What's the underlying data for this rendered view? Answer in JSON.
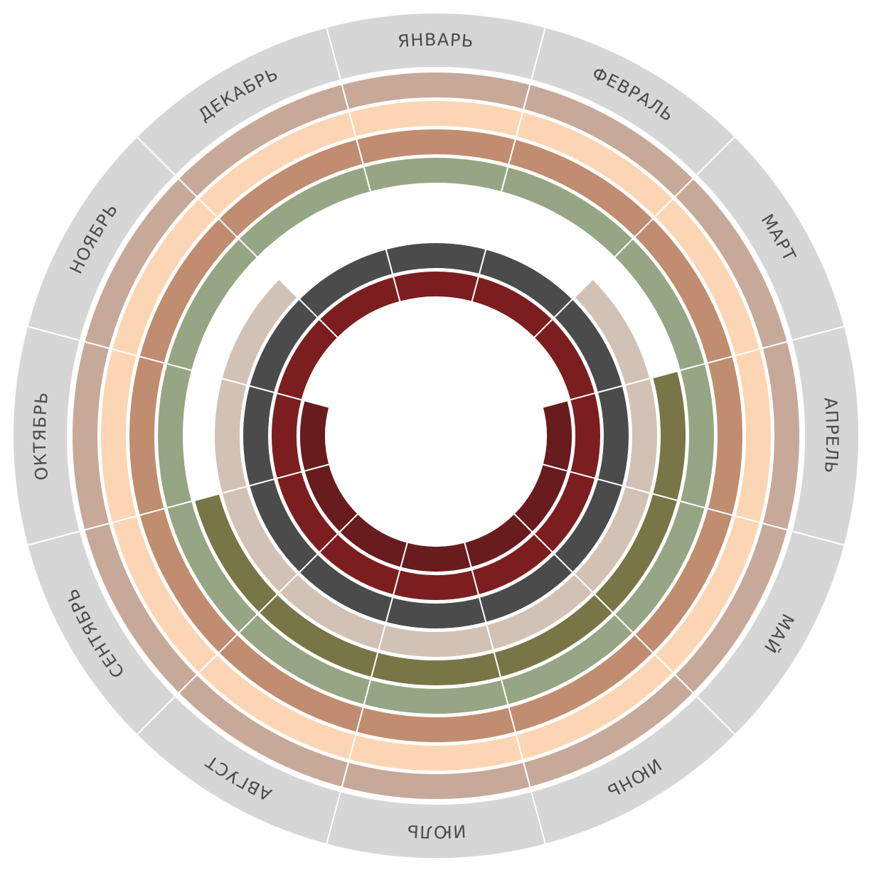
{
  "months": [
    "ЯНВАРЬ",
    "ФЕВРАЛЬ",
    "МАРТ",
    "АПРЕЛЬ",
    "МАЙ",
    "ИЮНЬ",
    "ИЮЛЬ",
    "АВГУСТ",
    "СЕНТЯБРЬ",
    "ОКТЯБРЬ",
    "НОЯБРЬ",
    "ДЕКАБРЬ"
  ],
  "colors": {
    "month_ring": "#d6d6d6",
    "divider": "#ffffff",
    "rings": [
      "#c7a99a",
      "#fcd6b4",
      "#c08d70",
      "#96a583",
      "#787547",
      "#d2c2b5",
      "#4b4b4b",
      "#7c1e1f",
      "#691c1d"
    ]
  },
  "rings": [
    {
      "color_index": 0,
      "active_months": [
        1,
        2,
        3,
        4,
        5,
        6,
        7,
        8,
        9,
        10,
        11,
        12
      ]
    },
    {
      "color_index": 1,
      "active_months": [
        1,
        2,
        3,
        4,
        5,
        6,
        7,
        8,
        9,
        10,
        11,
        12
      ]
    },
    {
      "color_index": 2,
      "active_months": [
        1,
        2,
        3,
        4,
        5,
        6,
        7,
        8,
        9,
        10,
        11,
        12
      ]
    },
    {
      "color_index": 3,
      "active_months": [
        1,
        2,
        3,
        4,
        5,
        6,
        7,
        8,
        9,
        10,
        11,
        12
      ]
    },
    {
      "color_index": 4,
      "active_months": [
        4,
        5,
        6,
        7,
        8,
        9
      ]
    },
    {
      "color_index": 5,
      "active_months": [
        3,
        4,
        5,
        6,
        7,
        8,
        9,
        10,
        11
      ]
    },
    {
      "color_index": 6,
      "active_months": [
        1,
        2,
        3,
        4,
        5,
        6,
        7,
        8,
        9,
        10,
        11,
        12
      ]
    },
    {
      "color_index": 7,
      "active_months": [
        1,
        2,
        3,
        4,
        5,
        6,
        7,
        8,
        9,
        10,
        11,
        12
      ]
    },
    {
      "color_index": 8,
      "active_months": [
        4,
        5,
        6,
        7,
        8,
        9,
        10
      ]
    }
  ]
}
